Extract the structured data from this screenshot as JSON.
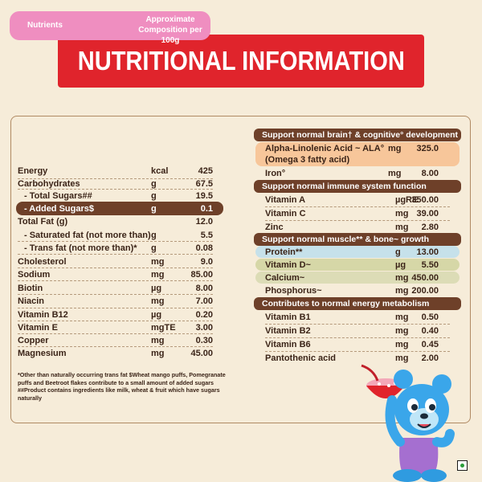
{
  "title": "NUTRITIONAL INFORMATION",
  "left_table": {
    "header_nutrients": "Nutrients",
    "header_approx_line1": "Approximate",
    "header_approx_line2": "Composition per 100g",
    "rows": [
      {
        "name": "Energy",
        "unit": "kcal",
        "value": "425"
      },
      {
        "name": "Carbohydrates",
        "unit": "g",
        "value": "67.5"
      },
      {
        "name": " - Total Sugars##",
        "unit": "g",
        "value": "19.5"
      },
      {
        "name": " - Added Sugars$",
        "unit": "g",
        "value": "0.1"
      },
      {
        "name": "Total Fat (g)",
        "unit": "",
        "value": "12.0"
      },
      {
        "name": " - Saturated fat (not more than)",
        "unit": "g",
        "value": "5.5"
      },
      {
        "name": " - Trans fat (not more than)*",
        "unit": "g",
        "value": "0.08"
      },
      {
        "name": "Cholesterol",
        "unit": "mg",
        "value": "9.0"
      },
      {
        "name": "Sodium",
        "unit": "mg",
        "value": "85.00"
      },
      {
        "name": "Biotin",
        "unit": "µg",
        "value": "8.00"
      },
      {
        "name": "Niacin",
        "unit": "mg",
        "value": "7.00"
      },
      {
        "name": "Vitamin B12",
        "unit": "µg",
        "value": "0.20"
      },
      {
        "name": "Vitamin E",
        "unit": "mgTE",
        "value": "3.00"
      },
      {
        "name": "Copper",
        "unit": "mg",
        "value": "0.30"
      },
      {
        "name": "Magnesium",
        "unit": "mg",
        "value": "45.00"
      }
    ]
  },
  "footnotes": [
    "*Other than naturally occurring trans fat $Wheat mango puffs, Pomegranate puffs and Beetroot flakes contribute to a small amount of added sugars",
    "##Product contains ingredients like milk, wheat & fruit which have sugars naturally"
  ],
  "right_table": {
    "section_brain": "Support normal brain† & cognitive° development",
    "ala_name_line1": "Alpha-Linolenic Acid ~ ALA°",
    "ala_name_line2": "(Omega 3 fatty acid)",
    "ala_unit": "mg",
    "ala_value": "325.0",
    "iron": {
      "name": "Iron°",
      "unit": "mg",
      "value": "8.00"
    },
    "section_immune": "Support normal immune system function",
    "immune_rows": [
      {
        "name": "Vitamin A",
        "unit": "µgRE",
        "value": "350.00"
      },
      {
        "name": "Vitamin C",
        "unit": "mg",
        "value": "39.00"
      },
      {
        "name": "Zinc",
        "unit": "mg",
        "value": "2.80"
      }
    ],
    "section_muscle": "Support normal muscle** & bone~ growth",
    "muscle_rows": [
      {
        "name": "Protein**",
        "unit": "g",
        "value": "13.00"
      },
      {
        "name": "Vitamin D~",
        "unit": "µg",
        "value": "5.50"
      },
      {
        "name": "Calcium~",
        "unit": "mg",
        "value": "450.00"
      },
      {
        "name": "Phosphorus~",
        "unit": "mg",
        "value": "200.00"
      }
    ],
    "section_energy": "Contributes to normal energy metabolism",
    "energy_rows": [
      {
        "name": "Vitamin B1",
        "unit": "mg",
        "value": "0.50"
      },
      {
        "name": "Vitamin B2",
        "unit": "mg",
        "value": "0.40"
      },
      {
        "name": "Vitamin B6",
        "unit": "mg",
        "value": "0.45"
      },
      {
        "name": "Pantothenic acid",
        "unit": "mg",
        "value": "2.00"
      }
    ]
  },
  "colors": {
    "banner": "#e0242c",
    "pink_header": "#ef8ec0",
    "section_bar": "#6e4029",
    "ala_highlight": "#f7c69a",
    "protein_highlight": "#c6e1ea",
    "vitd_highlight": "#d6d7a7",
    "calcium_highlight": "#dcdcb6"
  }
}
